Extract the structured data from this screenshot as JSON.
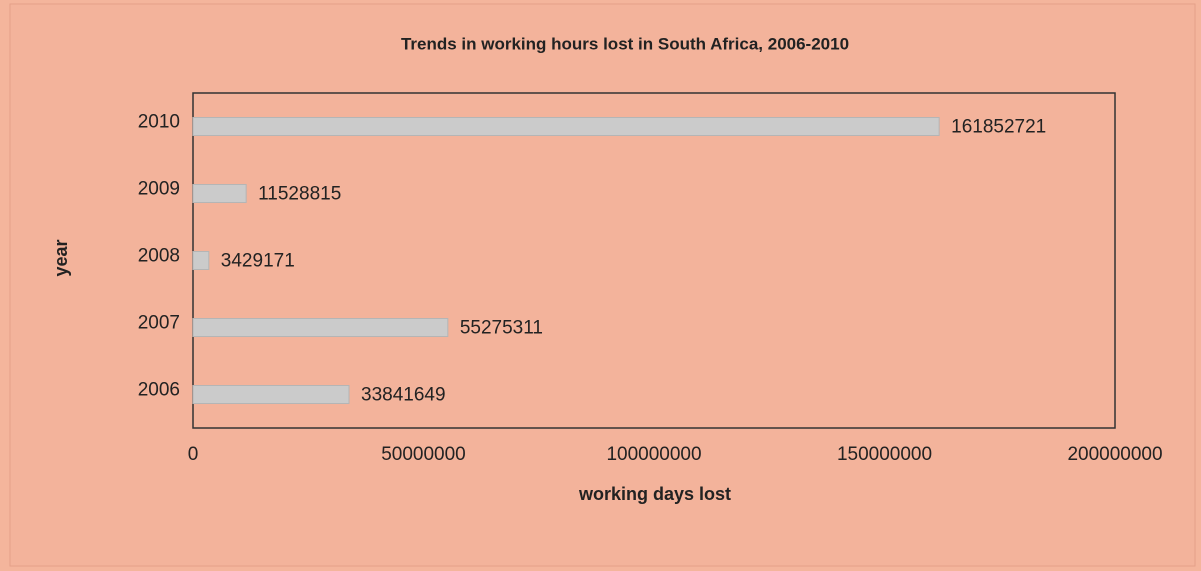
{
  "chart_data": {
    "type": "hbar",
    "title": "Trends in working hours lost in South Africa, 2006-2010",
    "x_label": "working days lost",
    "y_label": "year",
    "categories": [
      "2006",
      "2007",
      "2008",
      "2009",
      "2010"
    ],
    "values": [
      33841649,
      55275311,
      3429171,
      11528815,
      161852721
    ],
    "color": "#cbcbcb",
    "xlim": [
      0,
      200000000
    ],
    "xticks": [
      0,
      50000000,
      100000000,
      150000000,
      200000000
    ],
    "grid": false
  }
}
